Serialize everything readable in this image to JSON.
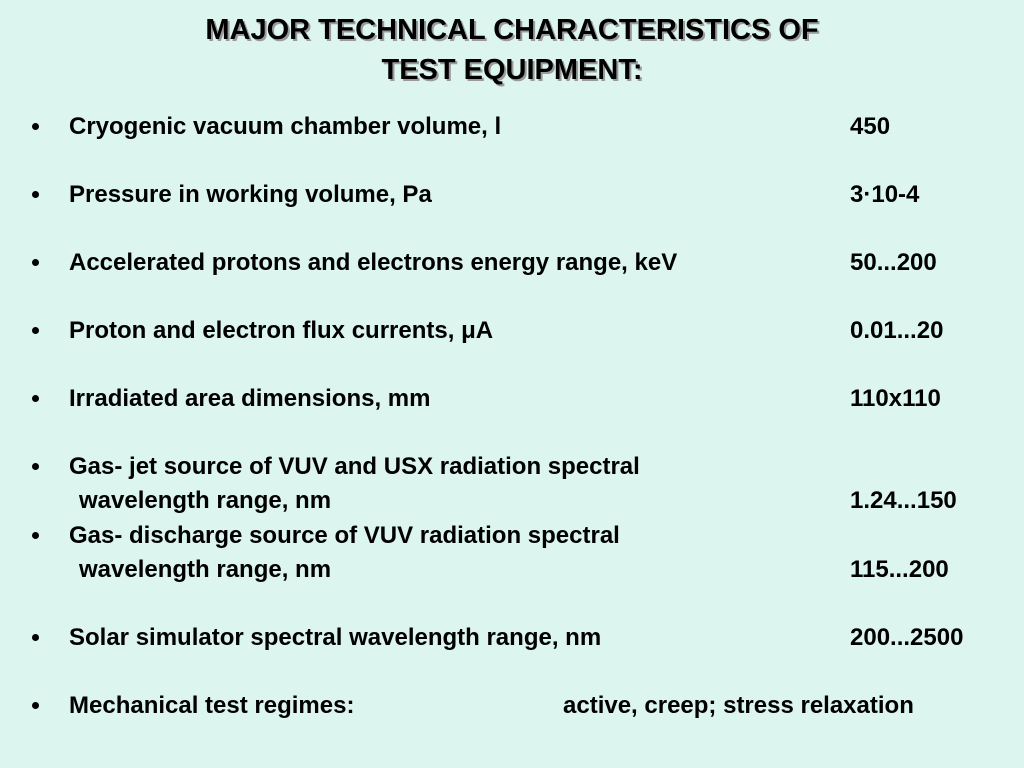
{
  "header": {
    "title_lines": [
      "MAJOR TECHNICAL CHARACTERISTICS OF",
      "TEST EQUIPMENT:"
    ]
  },
  "items": [
    {
      "label": [
        "Cryogenic vacuum chamber volume, l"
      ],
      "value": "450"
    },
    {
      "label": [
        "Pressure in working volume, Pa"
      ],
      "value": "3·10-4"
    },
    {
      "label": [
        "Accelerated protons and electrons energy range, keV"
      ],
      "value": "50...200"
    },
    {
      "label": [
        "Proton and electron flux currents, μA"
      ],
      "value": "0.01...20"
    },
    {
      "label": [
        "Irradiated area dimensions, mm"
      ],
      "value": "110x110"
    },
    {
      "label": [
        "Gas- jet source of VUV and USX radiation spectral",
        "wavelength range, nm"
      ],
      "value": "1.24...150"
    },
    {
      "label": [
        "Gas- discharge source of VUV radiation spectral",
        "wavelength range, nm"
      ],
      "value": "115...200"
    },
    {
      "label": [
        "Solar simulator spectral wavelength range, nm"
      ],
      "value": "200...2500"
    },
    {
      "label": [
        "Mechanical test regimes:"
      ],
      "value": "active, creep; stress relaxation"
    }
  ]
}
